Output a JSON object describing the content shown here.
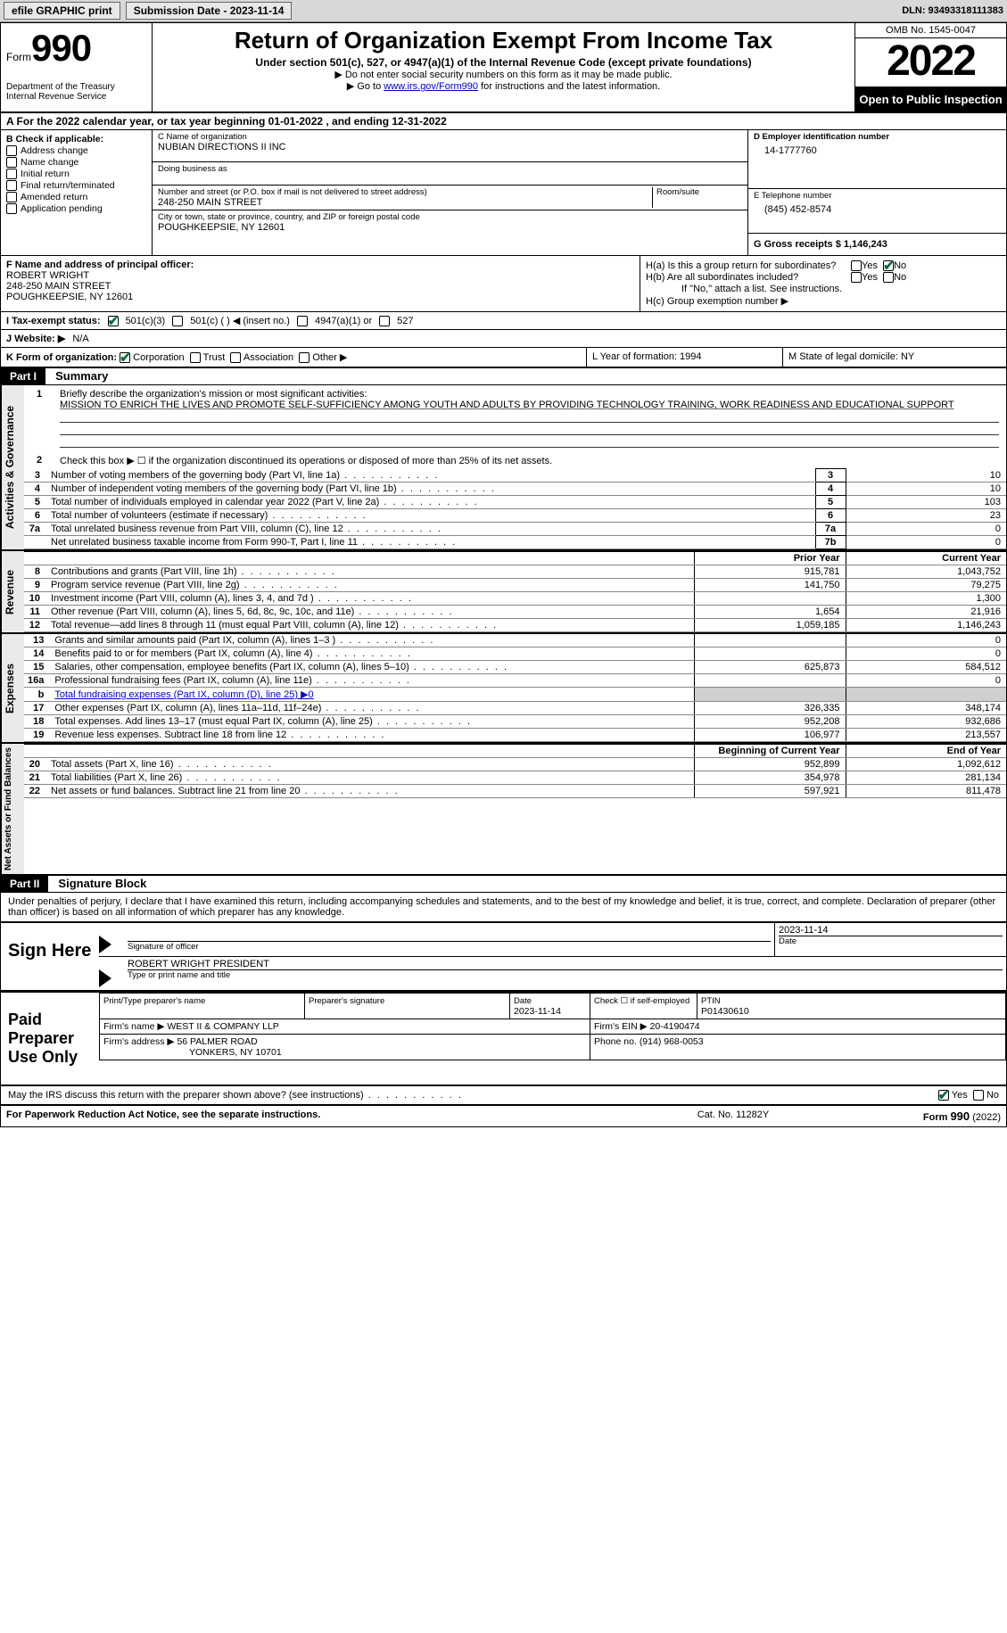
{
  "toolbar": {
    "efile_btn": "efile GRAPHIC print",
    "submission_label": "Submission Date - 2023-11-14",
    "dln_label": "DLN: 93493318111383"
  },
  "header": {
    "form_prefix": "Form",
    "form_no": "990",
    "title": "Return of Organization Exempt From Income Tax",
    "subtitle": "Under section 501(c), 527, or 4947(a)(1) of the Internal Revenue Code (except private foundations)",
    "note1": "▶ Do not enter social security numbers on this form as it may be made public.",
    "note2_pre": "▶ Go to ",
    "note2_link": "www.irs.gov/Form990",
    "note2_post": " for instructions and the latest information.",
    "dept": "Department of the Treasury",
    "irs": "Internal Revenue Service",
    "omb": "OMB No. 1545-0047",
    "year": "2022",
    "inspection": "Open to Public Inspection"
  },
  "row_a": "A For the 2022 calendar year, or tax year beginning 01-01-2022   , and ending 12-31-2022",
  "section_b": {
    "title": "B Check if applicable:",
    "items": [
      "Address change",
      "Name change",
      "Initial return",
      "Final return/terminated",
      "Amended return",
      "Application pending"
    ]
  },
  "section_c": {
    "name_label": "C Name of organization",
    "name": "NUBIAN DIRECTIONS II INC",
    "dba_label": "Doing business as",
    "street_label": "Number and street (or P.O. box if mail is not delivered to street address)",
    "room_label": "Room/suite",
    "street": "248-250 MAIN STREET",
    "city_label": "City or town, state or province, country, and ZIP or foreign postal code",
    "city": "POUGHKEEPSIE, NY  12601"
  },
  "section_d": {
    "ein_label": "D Employer identification number",
    "ein": "14-1777760",
    "phone_label": "E Telephone number",
    "phone": "(845) 452-8574",
    "gross_label": "G Gross receipts $ 1,146,243"
  },
  "section_f": {
    "label": "F Name and address of principal officer:",
    "name": "ROBERT WRIGHT",
    "addr1": "248-250 MAIN STREET",
    "addr2": "POUGHKEEPSIE, NY  12601"
  },
  "section_h": {
    "ha": "H(a)  Is this a group return for subordinates?",
    "hb": "H(b)  Are all subordinates included?",
    "hb_note": "If \"No,\" attach a list. See instructions.",
    "hc": "H(c)  Group exemption number ▶"
  },
  "row_i": {
    "label": "I   Tax-exempt status:",
    "opt1": "501(c)(3)",
    "opt2": "501(c) (  ) ◀ (insert no.)",
    "opt3": "4947(a)(1) or",
    "opt4": "527"
  },
  "row_j": {
    "label": "J   Website: ▶",
    "val": "N/A"
  },
  "row_k": {
    "label": "K Form of organization:",
    "opts": [
      "Corporation",
      "Trust",
      "Association",
      "Other ▶"
    ],
    "l": "L Year of formation: 1994",
    "m": "M State of legal domicile: NY"
  },
  "part1": {
    "tag": "Part I",
    "title": "Summary",
    "q1_label": "Briefly describe the organization's mission or most significant activities:",
    "q1_text": "MISSION TO ENRICH THE LIVES AND PROMOTE SELF-SUFFICIENCY AMONG YOUTH AND ADULTS BY PROVIDING TECHNOLOGY TRAINING, WORK READINESS AND EDUCATIONAL SUPPORT",
    "q2": "Check this box ▶ ☐ if the organization discontinued its operations or disposed of more than 25% of its net assets.",
    "vert1": "Activities & Governance",
    "vert2": "Revenue",
    "vert3": "Expenses",
    "vert4": "Net Assets or Fund Balances",
    "prior": "Prior Year",
    "current": "Current Year",
    "bcur": "Beginning of Current Year",
    "eoy": "End of Year",
    "lines_gov": [
      {
        "n": "3",
        "t": "Number of voting members of the governing body (Part VI, line 1a)",
        "box": "3",
        "v": "10"
      },
      {
        "n": "4",
        "t": "Number of independent voting members of the governing body (Part VI, line 1b)",
        "box": "4",
        "v": "10"
      },
      {
        "n": "5",
        "t": "Total number of individuals employed in calendar year 2022 (Part V, line 2a)",
        "box": "5",
        "v": "103"
      },
      {
        "n": "6",
        "t": "Total number of volunteers (estimate if necessary)",
        "box": "6",
        "v": "23"
      },
      {
        "n": "7a",
        "t": "Total unrelated business revenue from Part VIII, column (C), line 12",
        "box": "7a",
        "v": "0"
      },
      {
        "n": "",
        "t": "Net unrelated business taxable income from Form 990-T, Part I, line 11",
        "box": "7b",
        "v": "0"
      }
    ],
    "lines_rev": [
      {
        "n": "8",
        "t": "Contributions and grants (Part VIII, line 1h)",
        "p": "915,781",
        "c": "1,043,752"
      },
      {
        "n": "9",
        "t": "Program service revenue (Part VIII, line 2g)",
        "p": "141,750",
        "c": "79,275"
      },
      {
        "n": "10",
        "t": "Investment income (Part VIII, column (A), lines 3, 4, and 7d )",
        "p": "",
        "c": "1,300"
      },
      {
        "n": "11",
        "t": "Other revenue (Part VIII, column (A), lines 5, 6d, 8c, 9c, 10c, and 11e)",
        "p": "1,654",
        "c": "21,916"
      },
      {
        "n": "12",
        "t": "Total revenue—add lines 8 through 11 (must equal Part VIII, column (A), line 12)",
        "p": "1,059,185",
        "c": "1,146,243"
      }
    ],
    "lines_exp": [
      {
        "n": "13",
        "t": "Grants and similar amounts paid (Part IX, column (A), lines 1–3 )",
        "p": "",
        "c": "0"
      },
      {
        "n": "14",
        "t": "Benefits paid to or for members (Part IX, column (A), line 4)",
        "p": "",
        "c": "0"
      },
      {
        "n": "15",
        "t": "Salaries, other compensation, employee benefits (Part IX, column (A), lines 5–10)",
        "p": "625,873",
        "c": "584,512"
      },
      {
        "n": "16a",
        "t": "Professional fundraising fees (Part IX, column (A), line 11e)",
        "p": "",
        "c": "0"
      },
      {
        "n": "b",
        "t": "Total fundraising expenses (Part IX, column (D), line 25) ▶0",
        "shade": true
      },
      {
        "n": "17",
        "t": "Other expenses (Part IX, column (A), lines 11a–11d, 11f–24e)",
        "p": "326,335",
        "c": "348,174"
      },
      {
        "n": "18",
        "t": "Total expenses. Add lines 13–17 (must equal Part IX, column (A), line 25)",
        "p": "952,208",
        "c": "932,686"
      },
      {
        "n": "19",
        "t": "Revenue less expenses. Subtract line 18 from line 12",
        "p": "106,977",
        "c": "213,557"
      }
    ],
    "lines_net": [
      {
        "n": "20",
        "t": "Total assets (Part X, line 16)",
        "p": "952,899",
        "c": "1,092,612"
      },
      {
        "n": "21",
        "t": "Total liabilities (Part X, line 26)",
        "p": "354,978",
        "c": "281,134"
      },
      {
        "n": "22",
        "t": "Net assets or fund balances. Subtract line 21 from line 20",
        "p": "597,921",
        "c": "811,478"
      }
    ]
  },
  "part2": {
    "tag": "Part II",
    "title": "Signature Block",
    "pen": "Under penalties of perjury, I declare that I have examined this return, including accompanying schedules and statements, and to the best of my knowledge and belief, it is true, correct, and complete. Declaration of preparer (other than officer) is based on all information of which preparer has any knowledge.",
    "sign_here": "Sign Here",
    "sig_officer": "Signature of officer",
    "date": "Date",
    "sig_date": "2023-11-14",
    "name_title": "ROBERT WRIGHT PRESIDENT",
    "type_name": "Type or print name and title",
    "paid": "Paid Preparer Use Only",
    "prep_name_label": "Print/Type preparer's name",
    "prep_sig_label": "Preparer's signature",
    "prep_date_label": "Date",
    "prep_date": "2023-11-14",
    "check_self": "Check ☐ if self-employed",
    "ptin_label": "PTIN",
    "ptin": "P01430610",
    "firm_name_label": "Firm's name    ▶",
    "firm_name": "WEST II & COMPANY LLP",
    "firm_ein_label": "Firm's EIN ▶",
    "firm_ein": "20-4190474",
    "firm_addr_label": "Firm's address ▶",
    "firm_addr1": "56 PALMER ROAD",
    "firm_addr2": "YONKERS, NY  10701",
    "firm_phone_label": "Phone no.",
    "firm_phone": "(914) 968-0053",
    "may_irs": "May the IRS discuss this return with the preparer shown above? (see instructions)"
  },
  "footer": {
    "f1": "For Paperwork Reduction Act Notice, see the separate instructions.",
    "f2": "Cat. No. 11282Y",
    "f3": "Form 990 (2022)"
  },
  "yes": "Yes",
  "no": "No"
}
